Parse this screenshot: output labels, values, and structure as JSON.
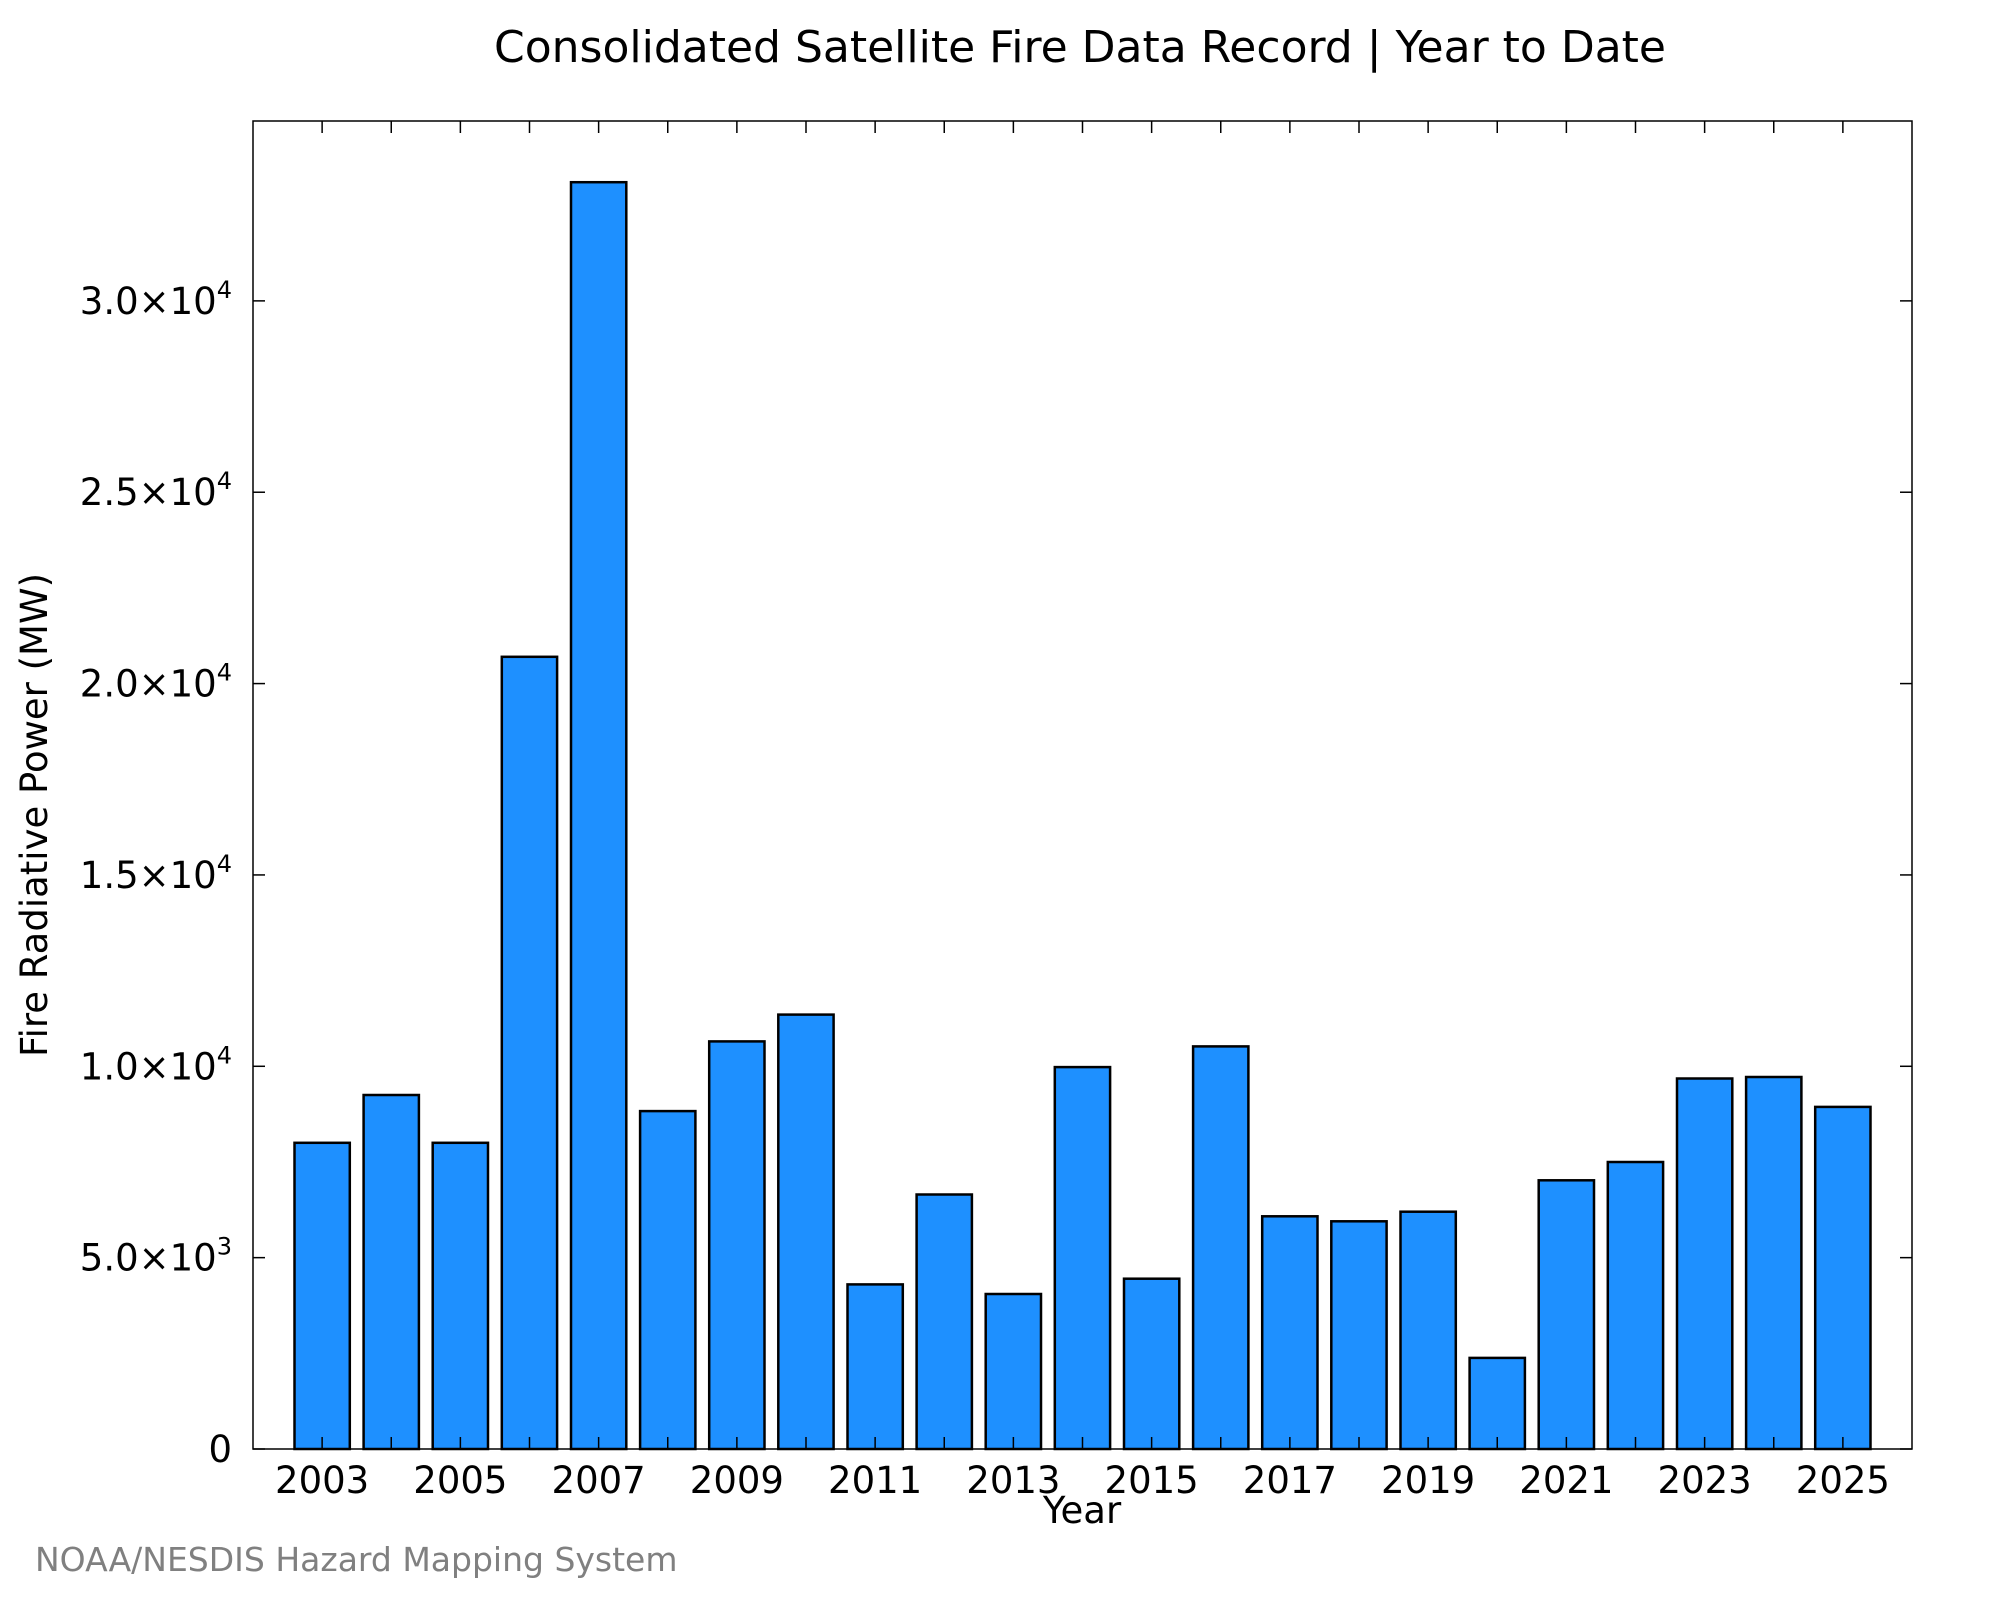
{
  "chart_data": {
    "type": "bar",
    "title": "Consolidated Satellite Fire Data Record | Year to Date",
    "xlabel": "Year",
    "ylabel": "Fire Radiative Power (MW)",
    "footer": "NOAA/NESDIS Hazard Mapping System",
    "categories": [
      2003,
      2004,
      2005,
      2006,
      2007,
      2008,
      2009,
      2010,
      2011,
      2012,
      2013,
      2014,
      2015,
      2016,
      2017,
      2018,
      2019,
      2020,
      2021,
      2022,
      2023,
      2024,
      2025
    ],
    "values": [
      8000,
      9250,
      8000,
      20700,
      33100,
      8830,
      10650,
      11350,
      4300,
      6650,
      4050,
      9980,
      4450,
      10520,
      6080,
      5950,
      6200,
      2380,
      7020,
      7500,
      9680,
      9720,
      8940
    ],
    "x_tick_labels": [
      "2003",
      "2005",
      "2007",
      "2009",
      "2011",
      "2013",
      "2015",
      "2017",
      "2019",
      "2021",
      "2023",
      "2025"
    ],
    "y_ticks": [
      {
        "value": 0,
        "mantissa": "0",
        "exponent": ""
      },
      {
        "value": 5000,
        "mantissa": "5.0×10",
        "exponent": "3"
      },
      {
        "value": 10000,
        "mantissa": "1.0×10",
        "exponent": "4"
      },
      {
        "value": 15000,
        "mantissa": "1.5×10",
        "exponent": "4"
      },
      {
        "value": 20000,
        "mantissa": "2.0×10",
        "exponent": "4"
      },
      {
        "value": 25000,
        "mantissa": "2.5×10",
        "exponent": "4"
      },
      {
        "value": 30000,
        "mantissa": "3.0×10",
        "exponent": "4"
      }
    ],
    "xlim": [
      2002.0,
      2026.0
    ],
    "ylim": [
      0,
      34700
    ],
    "bar_color": "#1e90ff",
    "edge_color": "#000000",
    "footer_color": "#808080",
    "grid": false,
    "legend": "none"
  }
}
